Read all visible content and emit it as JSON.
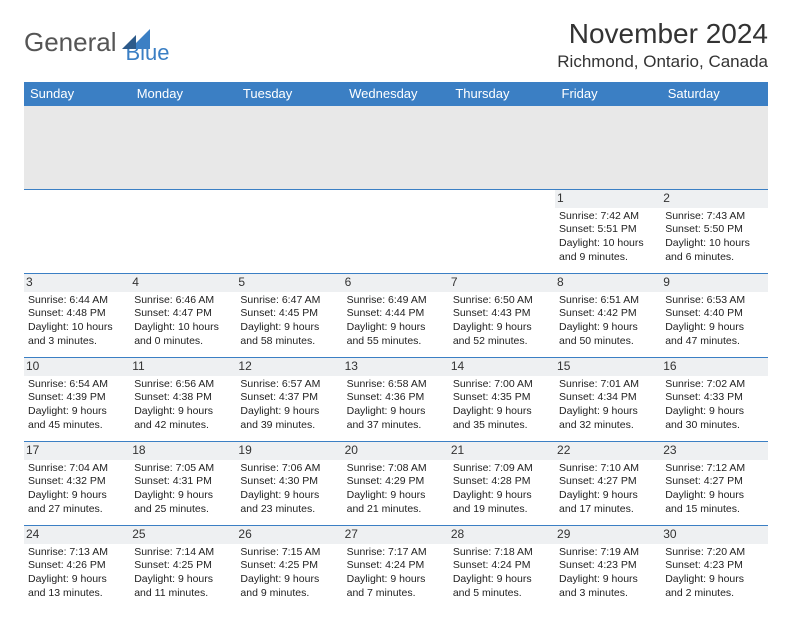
{
  "brand": {
    "word1": "General",
    "word2": "Blue"
  },
  "title": "November 2024",
  "location": "Richmond, Ontario, Canada",
  "colors": {
    "header_bg": "#3b7fc4",
    "header_text": "#ffffff",
    "border": "#3b7fc4",
    "spacer_bg": "#e8e8e8",
    "daynum_bg": "#eef0f2",
    "text": "#222222",
    "brand_gray": "#555555",
    "brand_blue": "#3b7fc4"
  },
  "typography": {
    "title_fontsize": 28,
    "location_fontsize": 17,
    "header_fontsize": 13,
    "cell_fontsize": 10.5,
    "daynum_fontsize": 12
  },
  "day_headers": [
    "Sunday",
    "Monday",
    "Tuesday",
    "Wednesday",
    "Thursday",
    "Friday",
    "Saturday"
  ],
  "weeks": [
    [
      null,
      null,
      null,
      null,
      null,
      {
        "n": "1",
        "sunrise": "Sunrise: 7:42 AM",
        "sunset": "Sunset: 5:51 PM",
        "daylight": "Daylight: 10 hours and 9 minutes."
      },
      {
        "n": "2",
        "sunrise": "Sunrise: 7:43 AM",
        "sunset": "Sunset: 5:50 PM",
        "daylight": "Daylight: 10 hours and 6 minutes."
      }
    ],
    [
      {
        "n": "3",
        "sunrise": "Sunrise: 6:44 AM",
        "sunset": "Sunset: 4:48 PM",
        "daylight": "Daylight: 10 hours and 3 minutes."
      },
      {
        "n": "4",
        "sunrise": "Sunrise: 6:46 AM",
        "sunset": "Sunset: 4:47 PM",
        "daylight": "Daylight: 10 hours and 0 minutes."
      },
      {
        "n": "5",
        "sunrise": "Sunrise: 6:47 AM",
        "sunset": "Sunset: 4:45 PM",
        "daylight": "Daylight: 9 hours and 58 minutes."
      },
      {
        "n": "6",
        "sunrise": "Sunrise: 6:49 AM",
        "sunset": "Sunset: 4:44 PM",
        "daylight": "Daylight: 9 hours and 55 minutes."
      },
      {
        "n": "7",
        "sunrise": "Sunrise: 6:50 AM",
        "sunset": "Sunset: 4:43 PM",
        "daylight": "Daylight: 9 hours and 52 minutes."
      },
      {
        "n": "8",
        "sunrise": "Sunrise: 6:51 AM",
        "sunset": "Sunset: 4:42 PM",
        "daylight": "Daylight: 9 hours and 50 minutes."
      },
      {
        "n": "9",
        "sunrise": "Sunrise: 6:53 AM",
        "sunset": "Sunset: 4:40 PM",
        "daylight": "Daylight: 9 hours and 47 minutes."
      }
    ],
    [
      {
        "n": "10",
        "sunrise": "Sunrise: 6:54 AM",
        "sunset": "Sunset: 4:39 PM",
        "daylight": "Daylight: 9 hours and 45 minutes."
      },
      {
        "n": "11",
        "sunrise": "Sunrise: 6:56 AM",
        "sunset": "Sunset: 4:38 PM",
        "daylight": "Daylight: 9 hours and 42 minutes."
      },
      {
        "n": "12",
        "sunrise": "Sunrise: 6:57 AM",
        "sunset": "Sunset: 4:37 PM",
        "daylight": "Daylight: 9 hours and 39 minutes."
      },
      {
        "n": "13",
        "sunrise": "Sunrise: 6:58 AM",
        "sunset": "Sunset: 4:36 PM",
        "daylight": "Daylight: 9 hours and 37 minutes."
      },
      {
        "n": "14",
        "sunrise": "Sunrise: 7:00 AM",
        "sunset": "Sunset: 4:35 PM",
        "daylight": "Daylight: 9 hours and 35 minutes."
      },
      {
        "n": "15",
        "sunrise": "Sunrise: 7:01 AM",
        "sunset": "Sunset: 4:34 PM",
        "daylight": "Daylight: 9 hours and 32 minutes."
      },
      {
        "n": "16",
        "sunrise": "Sunrise: 7:02 AM",
        "sunset": "Sunset: 4:33 PM",
        "daylight": "Daylight: 9 hours and 30 minutes."
      }
    ],
    [
      {
        "n": "17",
        "sunrise": "Sunrise: 7:04 AM",
        "sunset": "Sunset: 4:32 PM",
        "daylight": "Daylight: 9 hours and 27 minutes."
      },
      {
        "n": "18",
        "sunrise": "Sunrise: 7:05 AM",
        "sunset": "Sunset: 4:31 PM",
        "daylight": "Daylight: 9 hours and 25 minutes."
      },
      {
        "n": "19",
        "sunrise": "Sunrise: 7:06 AM",
        "sunset": "Sunset: 4:30 PM",
        "daylight": "Daylight: 9 hours and 23 minutes."
      },
      {
        "n": "20",
        "sunrise": "Sunrise: 7:08 AM",
        "sunset": "Sunset: 4:29 PM",
        "daylight": "Daylight: 9 hours and 21 minutes."
      },
      {
        "n": "21",
        "sunrise": "Sunrise: 7:09 AM",
        "sunset": "Sunset: 4:28 PM",
        "daylight": "Daylight: 9 hours and 19 minutes."
      },
      {
        "n": "22",
        "sunrise": "Sunrise: 7:10 AM",
        "sunset": "Sunset: 4:27 PM",
        "daylight": "Daylight: 9 hours and 17 minutes."
      },
      {
        "n": "23",
        "sunrise": "Sunrise: 7:12 AM",
        "sunset": "Sunset: 4:27 PM",
        "daylight": "Daylight: 9 hours and 15 minutes."
      }
    ],
    [
      {
        "n": "24",
        "sunrise": "Sunrise: 7:13 AM",
        "sunset": "Sunset: 4:26 PM",
        "daylight": "Daylight: 9 hours and 13 minutes."
      },
      {
        "n": "25",
        "sunrise": "Sunrise: 7:14 AM",
        "sunset": "Sunset: 4:25 PM",
        "daylight": "Daylight: 9 hours and 11 minutes."
      },
      {
        "n": "26",
        "sunrise": "Sunrise: 7:15 AM",
        "sunset": "Sunset: 4:25 PM",
        "daylight": "Daylight: 9 hours and 9 minutes."
      },
      {
        "n": "27",
        "sunrise": "Sunrise: 7:17 AM",
        "sunset": "Sunset: 4:24 PM",
        "daylight": "Daylight: 9 hours and 7 minutes."
      },
      {
        "n": "28",
        "sunrise": "Sunrise: 7:18 AM",
        "sunset": "Sunset: 4:24 PM",
        "daylight": "Daylight: 9 hours and 5 minutes."
      },
      {
        "n": "29",
        "sunrise": "Sunrise: 7:19 AM",
        "sunset": "Sunset: 4:23 PM",
        "daylight": "Daylight: 9 hours and 3 minutes."
      },
      {
        "n": "30",
        "sunrise": "Sunrise: 7:20 AM",
        "sunset": "Sunset: 4:23 PM",
        "daylight": "Daylight: 9 hours and 2 minutes."
      }
    ]
  ]
}
